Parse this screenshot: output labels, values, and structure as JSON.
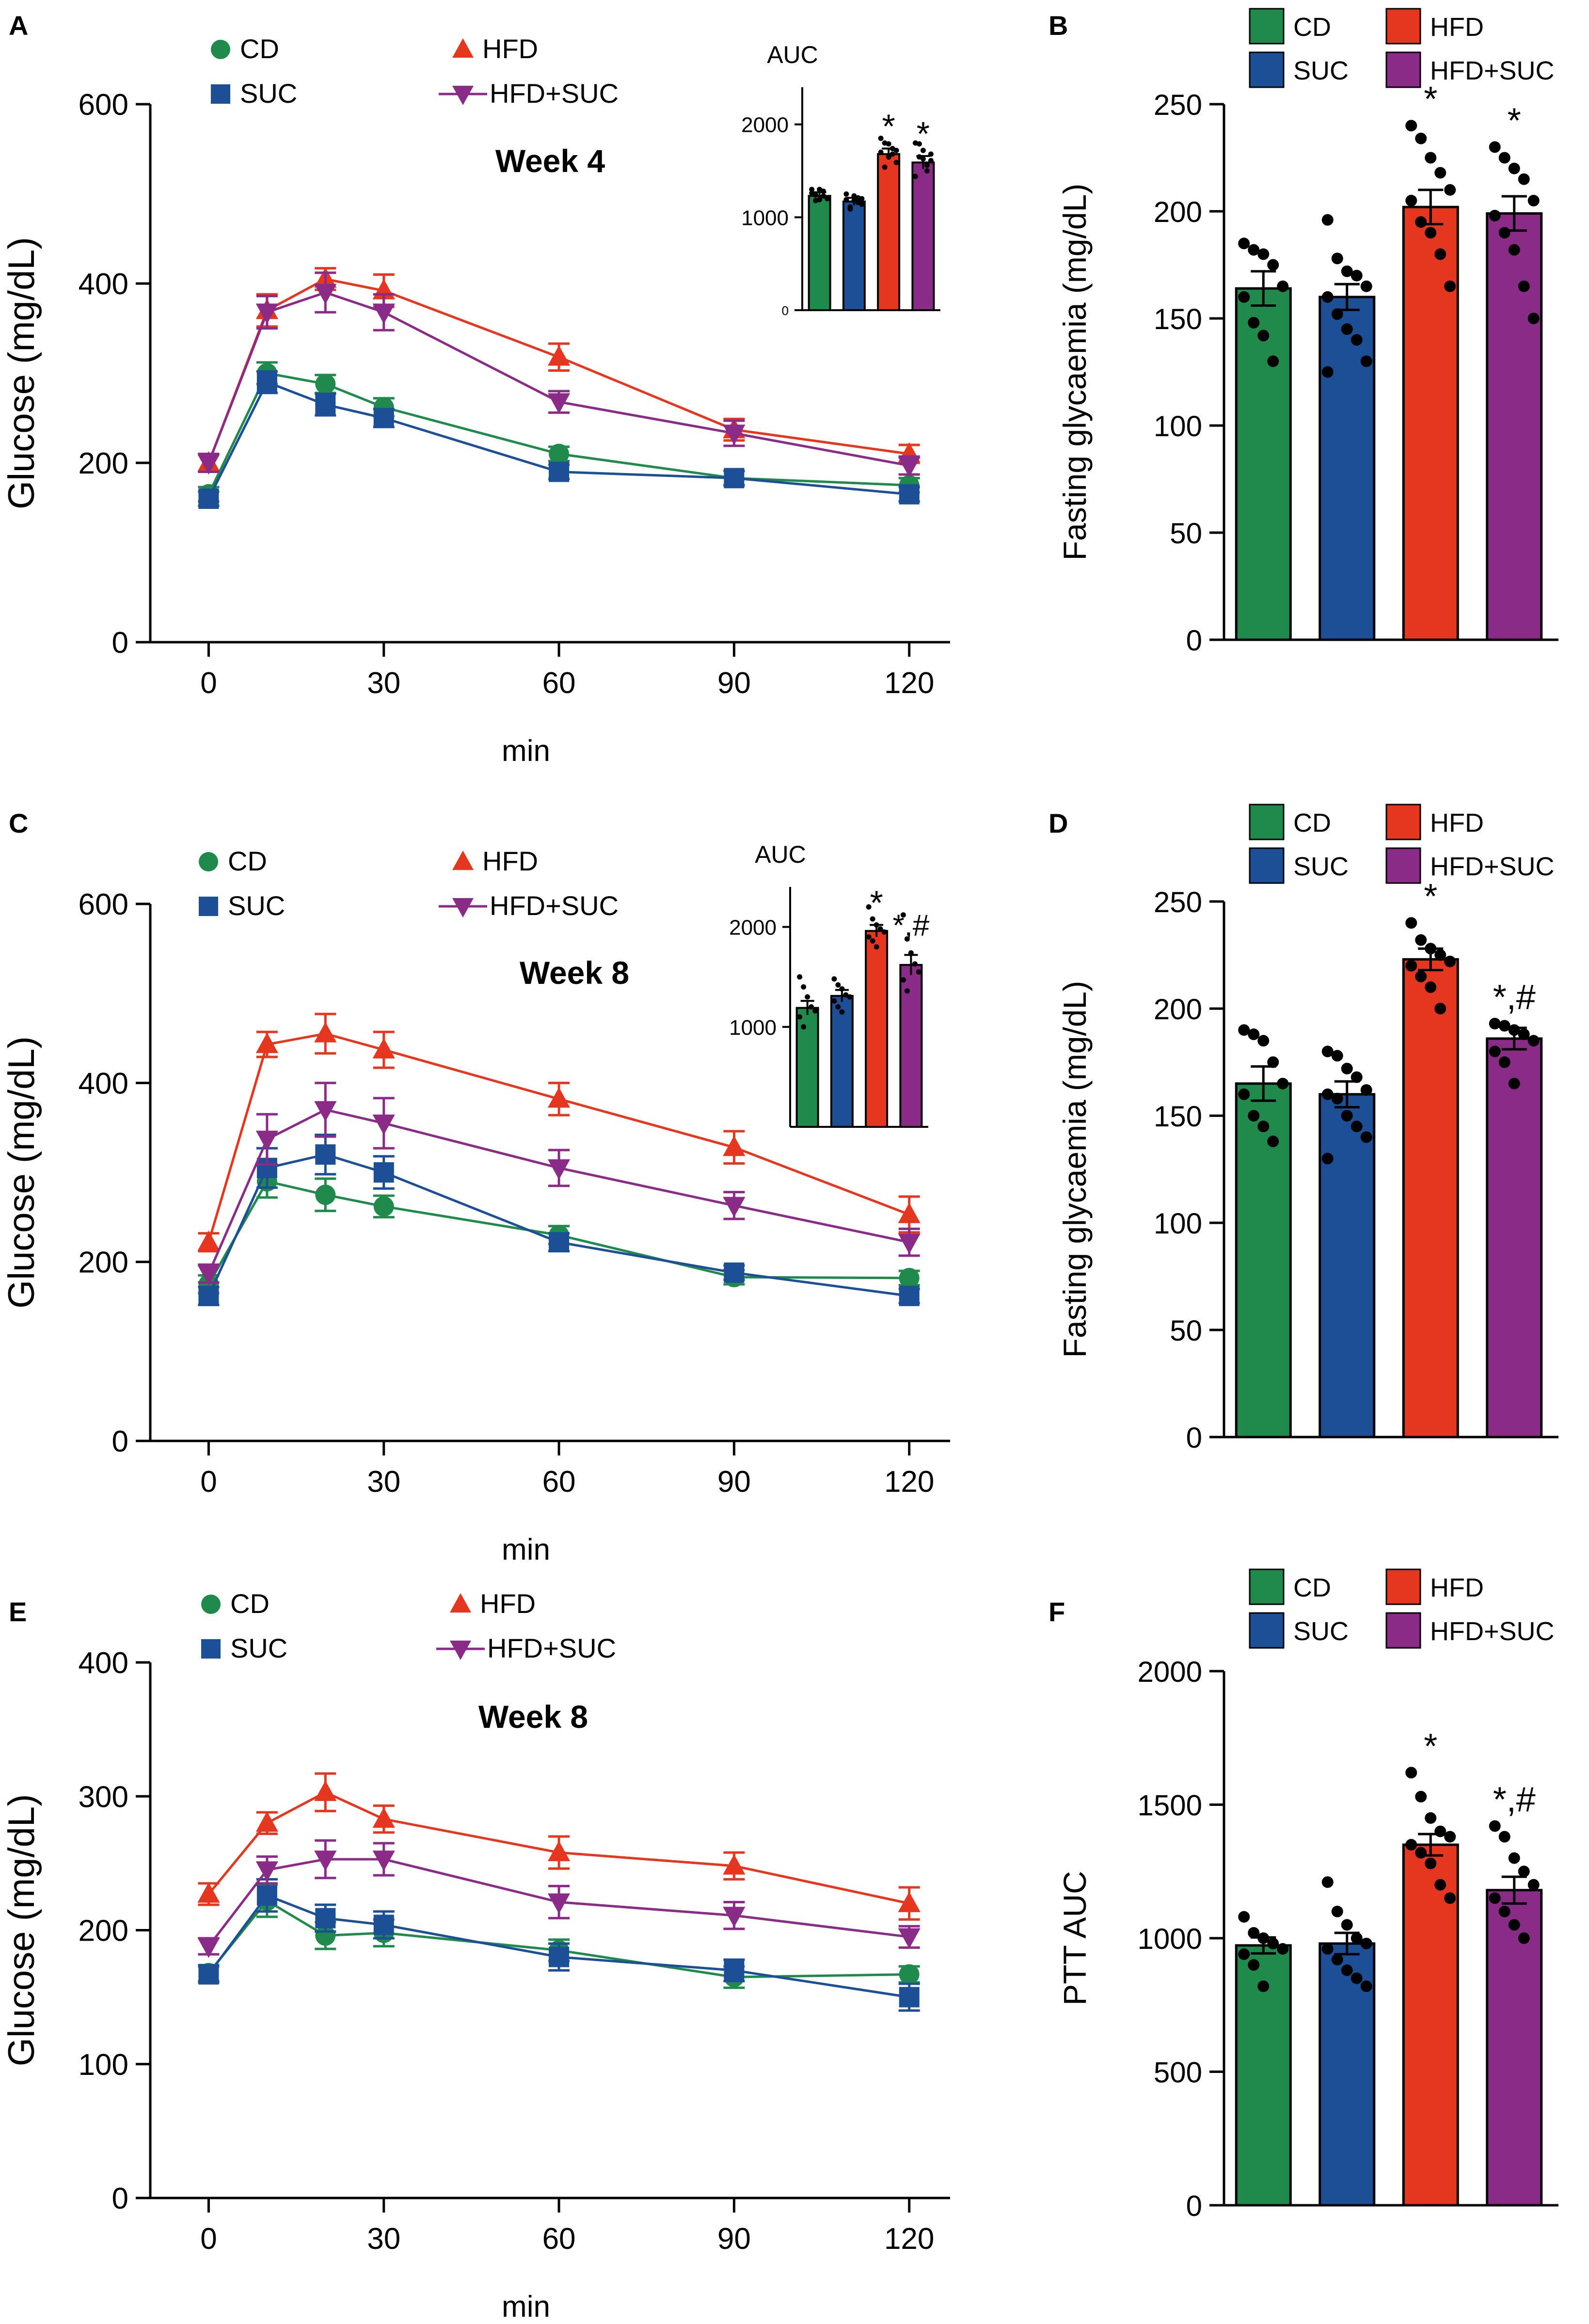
{
  "legend_labels": [
    "CD",
    "SUC",
    "HFD",
    "HFD+SUC"
  ],
  "colors": {
    "CD": "#1f8a4c",
    "SUC": "#1c4f95",
    "HFD": "#e5361f",
    "HFD+SUC": "#8a2b88",
    "axis": "#000000"
  },
  "chart_data": [
    {
      "panel": "A",
      "type": "line",
      "title": "Week 4",
      "xlabel": "min",
      "ylabel": "Glucose (mg/dL)",
      "x": [
        0,
        10,
        20,
        30,
        60,
        90,
        120
      ],
      "xticks": [
        0,
        30,
        60,
        90,
        120
      ],
      "ylim": [
        0,
        600
      ],
      "yticks": [
        0,
        200,
        400,
        600
      ],
      "xlim": [
        -10,
        127
      ],
      "series": [
        {
          "name": "CD",
          "values": [
            165,
            300,
            288,
            262,
            210,
            183,
            175
          ],
          "errors": [
            8,
            12,
            10,
            10,
            8,
            8,
            8
          ]
        },
        {
          "name": "SUC",
          "values": [
            160,
            290,
            265,
            250,
            190,
            183,
            165
          ],
          "errors": [
            8,
            12,
            12,
            10,
            8,
            8,
            8
          ]
        },
        {
          "name": "HFD",
          "values": [
            200,
            370,
            405,
            392,
            318,
            237,
            210
          ],
          "errors": [
            10,
            18,
            12,
            18,
            15,
            12,
            10
          ]
        },
        {
          "name": "HFD+SUC",
          "values": [
            200,
            368,
            390,
            368,
            268,
            233,
            197
          ],
          "errors": [
            10,
            18,
            22,
            20,
            12,
            14,
            10
          ]
        }
      ],
      "inset": {
        "title": "AUC",
        "ylim": [
          0,
          2400
        ],
        "yticks": [
          0,
          1000,
          2000
        ],
        "values": [
          1230,
          1170,
          1680,
          1590
        ],
        "errors": [
          40,
          40,
          60,
          70
        ],
        "annotations": [
          "",
          "",
          "*",
          "*"
        ],
        "points": [
          [
            1300,
            1240,
            1190,
            1280,
            1210,
            1260,
            1180,
            1300,
            1230,
            1200
          ],
          [
            1250,
            1110,
            1180,
            1210,
            1140,
            1190,
            1090,
            1230,
            1160,
            1200
          ],
          [
            1850,
            1800,
            1650,
            1740,
            1590,
            1700,
            1540,
            1790,
            1680,
            1720
          ],
          [
            1800,
            1650,
            1720,
            1500,
            1610,
            1440,
            1790,
            1630,
            1560,
            1680
          ]
        ]
      }
    },
    {
      "panel": "B",
      "type": "bar",
      "ylabel": "Fasting glycaemia (mg/dL)",
      "categories": [
        "CD",
        "SUC",
        "HFD",
        "HFD+SUC"
      ],
      "values": [
        164,
        160,
        202,
        199
      ],
      "errors": [
        8,
        6,
        8,
        8
      ],
      "ylim": [
        0,
        250
      ],
      "yticks": [
        0,
        50,
        100,
        150,
        200,
        250
      ],
      "annotations": [
        "",
        "",
        "*",
        "*"
      ],
      "points": [
        [
          185,
          182,
          180,
          175,
          165,
          160,
          148,
          142,
          130
        ],
        [
          196,
          178,
          172,
          170,
          165,
          160,
          152,
          145,
          140,
          130,
          125
        ],
        [
          240,
          234,
          225,
          218,
          210,
          205,
          195,
          190,
          180,
          165
        ],
        [
          230,
          225,
          220,
          215,
          205,
          198,
          190,
          182,
          165,
          150
        ]
      ]
    },
    {
      "panel": "C",
      "type": "line",
      "title": "Week 8",
      "xlabel": "min",
      "ylabel": "Glucose (mg/dL)",
      "x": [
        0,
        10,
        20,
        30,
        60,
        90,
        120
      ],
      "xticks": [
        0,
        30,
        60,
        90,
        120
      ],
      "ylim": [
        0,
        600
      ],
      "yticks": [
        0,
        200,
        400,
        600
      ],
      "xlim": [
        -10,
        127
      ],
      "series": [
        {
          "name": "CD",
          "values": [
            175,
            290,
            275,
            262,
            230,
            183,
            182
          ],
          "errors": [
            10,
            18,
            18,
            12,
            10,
            8,
            8
          ]
        },
        {
          "name": "SUC",
          "values": [
            162,
            305,
            320,
            300,
            222,
            188,
            162
          ],
          "errors": [
            10,
            22,
            22,
            18,
            10,
            8,
            8
          ]
        },
        {
          "name": "HFD",
          "values": [
            222,
            443,
            455,
            437,
            382,
            328,
            253
          ],
          "errors": [
            10,
            14,
            22,
            20,
            18,
            18,
            20
          ]
        },
        {
          "name": "HFD+SUC",
          "values": [
            187,
            337,
            370,
            355,
            305,
            263,
            222
          ],
          "errors": [
            10,
            28,
            30,
            28,
            20,
            15,
            15
          ]
        }
      ],
      "inset": {
        "title": "AUC",
        "ylim": [
          0,
          2400
        ],
        "yticks": [
          1000,
          2000
        ],
        "values": [
          1190,
          1310,
          1960,
          1620
        ],
        "errors": [
          70,
          60,
          60,
          100
        ],
        "annotations": [
          "",
          "",
          "*",
          "*,#"
        ],
        "points": [
          [
            1500,
            1400,
            1300,
            1200,
            1160,
            1100,
            1000
          ],
          [
            1480,
            1420,
            1380,
            1320,
            1300,
            1260,
            1200,
            1150
          ],
          [
            2200,
            2080,
            2020,
            1980,
            1950,
            1900,
            1860,
            1800
          ],
          [
            2120,
            1880,
            1740,
            1630,
            1550,
            1470,
            1360
          ]
        ]
      }
    },
    {
      "panel": "D",
      "type": "bar",
      "ylabel": "Fasting glycaemia (mg/dL)",
      "categories": [
        "CD",
        "SUC",
        "HFD",
        "HFD+SUC"
      ],
      "values": [
        165,
        160,
        223,
        186
      ],
      "errors": [
        8,
        6,
        5,
        5
      ],
      "ylim": [
        0,
        250
      ],
      "yticks": [
        0,
        50,
        100,
        150,
        200,
        250
      ],
      "annotations": [
        "",
        "",
        "*",
        "*,#"
      ],
      "points": [
        [
          190,
          188,
          185,
          175,
          165,
          160,
          150,
          145,
          138
        ],
        [
          180,
          178,
          172,
          168,
          162,
          160,
          158,
          150,
          145,
          140,
          130
        ],
        [
          240,
          232,
          228,
          225,
          222,
          220,
          215,
          210,
          200
        ],
        [
          193,
          192,
          190,
          188,
          185,
          180,
          175,
          165
        ]
      ]
    },
    {
      "panel": "E",
      "type": "line",
      "title": "Week 8",
      "xlabel": "min",
      "ylabel": "Glucose (mg/dL)",
      "x": [
        0,
        10,
        20,
        30,
        60,
        90,
        120
      ],
      "xticks": [
        0,
        30,
        60,
        90,
        120
      ],
      "ylim": [
        0,
        400
      ],
      "yticks": [
        0,
        100,
        200,
        300,
        400
      ],
      "xlim": [
        -10,
        127
      ],
      "series": [
        {
          "name": "CD",
          "values": [
            168,
            222,
            196,
            198,
            185,
            165,
            167
          ],
          "errors": [
            6,
            12,
            10,
            10,
            8,
            8,
            6
          ]
        },
        {
          "name": "SUC",
          "values": [
            167,
            226,
            209,
            204,
            180,
            170,
            150
          ],
          "errors": [
            6,
            12,
            10,
            10,
            10,
            8,
            10
          ]
        },
        {
          "name": "HFD",
          "values": [
            227,
            280,
            303,
            283,
            258,
            248,
            220
          ],
          "errors": [
            8,
            8,
            14,
            10,
            12,
            10,
            12
          ]
        },
        {
          "name": "HFD+SUC",
          "values": [
            188,
            245,
            253,
            253,
            221,
            211,
            195
          ],
          "errors": [
            6,
            10,
            14,
            12,
            12,
            10,
            8
          ]
        }
      ]
    },
    {
      "panel": "F",
      "type": "bar",
      "ylabel": "PTT AUC",
      "categories": [
        "CD",
        "SUC",
        "HFD",
        "HFD+SUC"
      ],
      "values": [
        973,
        980,
        1350,
        1180
      ],
      "errors": [
        30,
        40,
        40,
        50
      ],
      "ylim": [
        0,
        2000
      ],
      "yticks": [
        0,
        500,
        1000,
        1500,
        2000
      ],
      "annotations": [
        "",
        "",
        "*",
        "*,#"
      ],
      "points": [
        [
          1080,
          1020,
          1000,
          980,
          960,
          940,
          900,
          820
        ],
        [
          1210,
          1100,
          1050,
          1000,
          980,
          960,
          920,
          880,
          850,
          820
        ],
        [
          1620,
          1530,
          1450,
          1400,
          1380,
          1350,
          1320,
          1280,
          1200,
          1150
        ],
        [
          1420,
          1380,
          1300,
          1250,
          1200,
          1150,
          1100,
          1050,
          1000
        ]
      ]
    }
  ]
}
